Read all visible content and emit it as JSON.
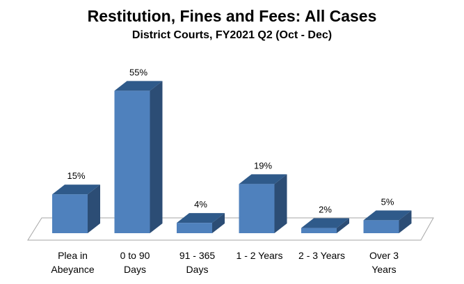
{
  "chart_data": {
    "type": "bar",
    "title": "Restitution, Fines and Fees: All Cases",
    "subtitle": "District Courts, FY2021 Q2 (Oct - Dec)",
    "categories": [
      [
        "Plea in",
        "Abeyance"
      ],
      [
        "0 to 90",
        "Days"
      ],
      [
        "91 - 365",
        "Days"
      ],
      [
        "1 - 2 Years"
      ],
      [
        "2 - 3 Years"
      ],
      [
        "Over 3",
        "Years"
      ]
    ],
    "values": [
      15,
      55,
      4,
      19,
      2,
      5
    ],
    "data_labels": [
      "15%",
      "55%",
      "4%",
      "19%",
      "2%",
      "5%"
    ],
    "unit": "%",
    "ylim": [
      0,
      60
    ],
    "grid": false,
    "legend": "none",
    "colors": {
      "bar_front": "#4F81BD",
      "bar_top": "#2F5A8A",
      "bar_side": "#2C4D75",
      "floor_line": "#A6A6A6"
    }
  }
}
